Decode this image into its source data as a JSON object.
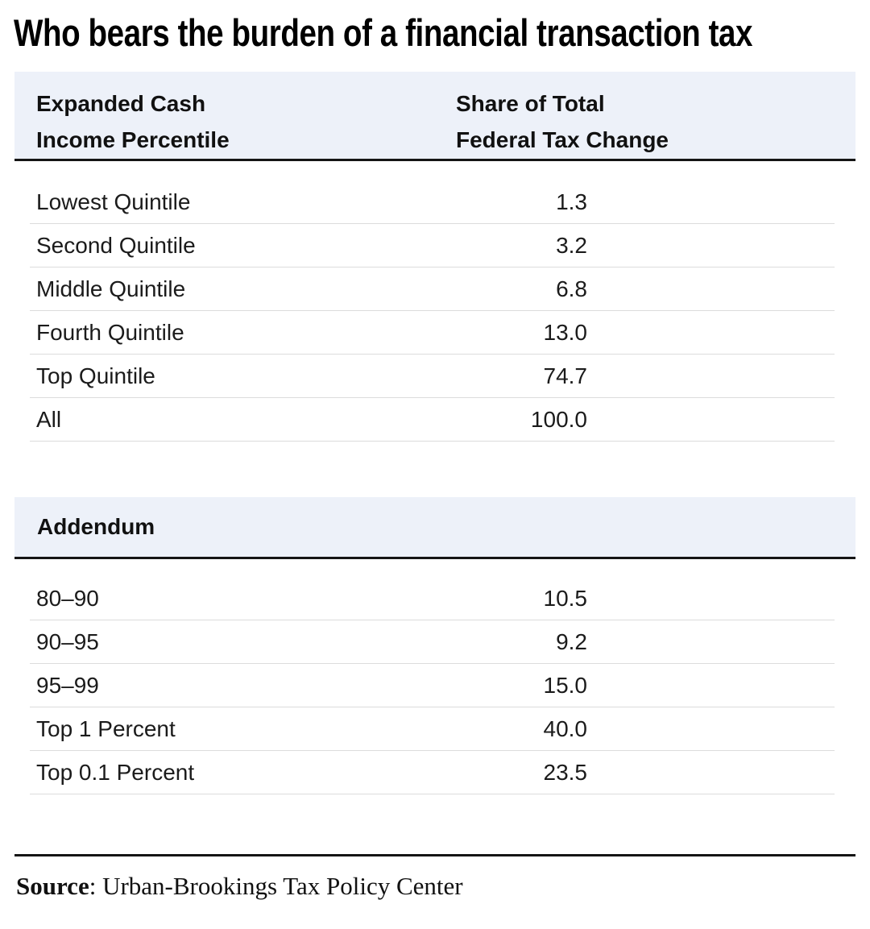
{
  "title": "Who bears the burden of a financial transaction tax",
  "table": {
    "col1_header_line1": "Expanded Cash",
    "col1_header_line2": "Income Percentile",
    "col2_header_line1": "Share of Total",
    "col2_header_line2": "Federal Tax Change",
    "rows": [
      {
        "label": "Lowest Quintile",
        "value": "1.3"
      },
      {
        "label": "Second Quintile",
        "value": "3.2"
      },
      {
        "label": "Middle Quintile",
        "value": "6.8"
      },
      {
        "label": "Fourth Quintile",
        "value": "13.0"
      },
      {
        "label": "Top Quintile",
        "value": "74.7"
      },
      {
        "label": "All",
        "value": "100.0"
      }
    ]
  },
  "addendum": {
    "header": "Addendum",
    "rows": [
      {
        "label": "80–90",
        "value": "10.5"
      },
      {
        "label": "90–95",
        "value": "9.2"
      },
      {
        "label": "95–99",
        "value": "15.0"
      },
      {
        "label": "Top 1 Percent",
        "value": "40.0"
      },
      {
        "label": "Top 0.1 Percent",
        "value": "23.5"
      }
    ]
  },
  "source": {
    "label": "Source",
    "rest": ": Urban-Brookings Tax Policy Center"
  },
  "colors": {
    "header_band": "#edf1f9",
    "heavy_rule": "#151515",
    "row_separator": "#dcdcdc",
    "text": "#1b1b1b"
  },
  "chart_data": {
    "type": "table",
    "title": "Who bears the burden of a financial transaction tax",
    "columns": [
      "Expanded Cash Income Percentile",
      "Share of Total Federal Tax Change"
    ],
    "rows": [
      [
        "Lowest Quintile",
        1.3
      ],
      [
        "Second Quintile",
        3.2
      ],
      [
        "Middle Quintile",
        6.8
      ],
      [
        "Fourth Quintile",
        13.0
      ],
      [
        "Top Quintile",
        74.7
      ],
      [
        "All",
        100.0
      ]
    ],
    "addendum_rows": [
      [
        "80–90",
        10.5
      ],
      [
        "90–95",
        9.2
      ],
      [
        "95–99",
        15.0
      ],
      [
        "Top 1 Percent",
        40.0
      ],
      [
        "Top 0.1 Percent",
        23.5
      ]
    ],
    "source": "Urban-Brookings Tax Policy Center"
  }
}
